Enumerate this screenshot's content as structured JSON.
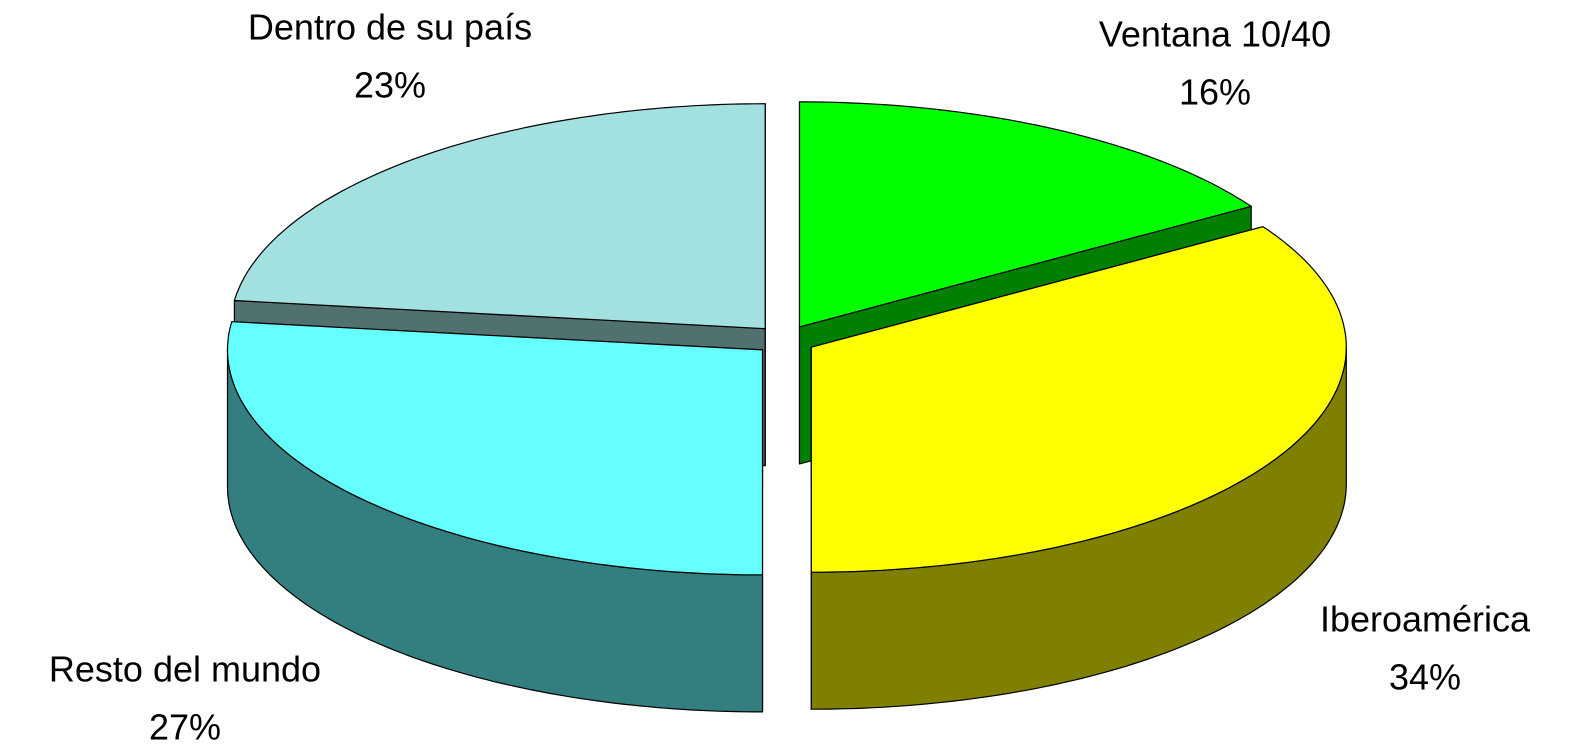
{
  "chart_data": {
    "type": "pie3d",
    "categories": [
      "Ventana 10/40",
      "Iberoamérica",
      "Resto del mundo",
      "Dentro de su país"
    ],
    "values": [
      16,
      34,
      27,
      23
    ],
    "value_labels": [
      "16%",
      "34%",
      "27%",
      "23%"
    ],
    "colors": [
      "#00ff00",
      "#ffff00",
      "#66ffff",
      "#a3e0e0"
    ]
  }
}
